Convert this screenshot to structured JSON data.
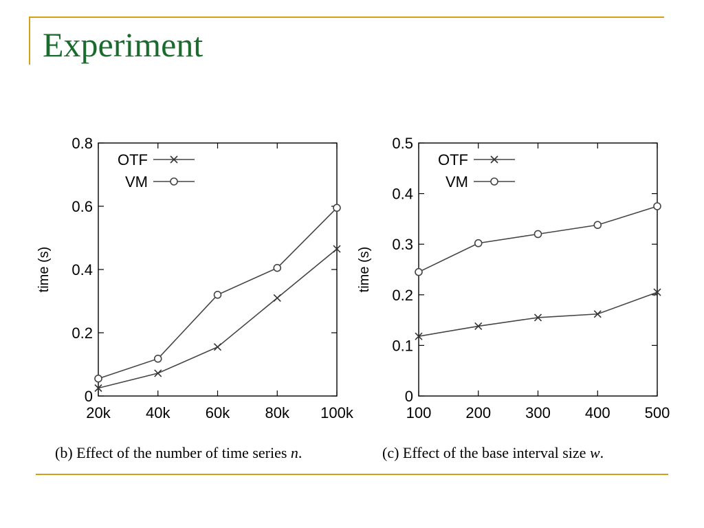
{
  "slide": {
    "title": "Experiment"
  },
  "chart_data": [
    {
      "type": "line",
      "caption_prefix": "(b) Effect of the number of time series",
      "caption_var": "n",
      "caption_suffix": ".",
      "xlabel": "",
      "ylabel": "time (s)",
      "x": [
        20,
        40,
        60,
        80,
        100
      ],
      "x_tick_labels": [
        "20k",
        "40k",
        "60k",
        "80k",
        "100k"
      ],
      "ylim": [
        0,
        0.8
      ],
      "y_ticks": [
        0,
        0.2,
        0.4,
        0.6,
        0.8
      ],
      "y_tick_labels": [
        "0",
        "0.2",
        "0.4",
        "0.6",
        "0.8"
      ],
      "grid": false,
      "legend_position": "top-left",
      "series": [
        {
          "name": "OTF",
          "marker": "cross",
          "values": [
            0.025,
            0.072,
            0.155,
            0.31,
            0.465
          ]
        },
        {
          "name": "VM",
          "marker": "circle",
          "values": [
            0.055,
            0.118,
            0.32,
            0.405,
            0.595
          ]
        }
      ]
    },
    {
      "type": "line",
      "caption_prefix": "(c) Effect of the base interval size",
      "caption_var": "w",
      "caption_suffix": ".",
      "xlabel": "",
      "ylabel": "time (s)",
      "x": [
        100,
        200,
        300,
        400,
        500
      ],
      "x_tick_labels": [
        "100",
        "200",
        "300",
        "400",
        "500"
      ],
      "ylim": [
        0,
        0.5
      ],
      "y_ticks": [
        0,
        0.1,
        0.2,
        0.3,
        0.4,
        0.5
      ],
      "y_tick_labels": [
        "0",
        "0.1",
        "0.2",
        "0.3",
        "0.4",
        "0.5"
      ],
      "grid": false,
      "legend_position": "top-left",
      "series": [
        {
          "name": "OTF",
          "marker": "cross",
          "values": [
            0.118,
            0.138,
            0.155,
            0.162,
            0.205
          ]
        },
        {
          "name": "VM",
          "marker": "circle",
          "values": [
            0.245,
            0.302,
            0.32,
            0.338,
            0.375
          ]
        }
      ]
    }
  ]
}
